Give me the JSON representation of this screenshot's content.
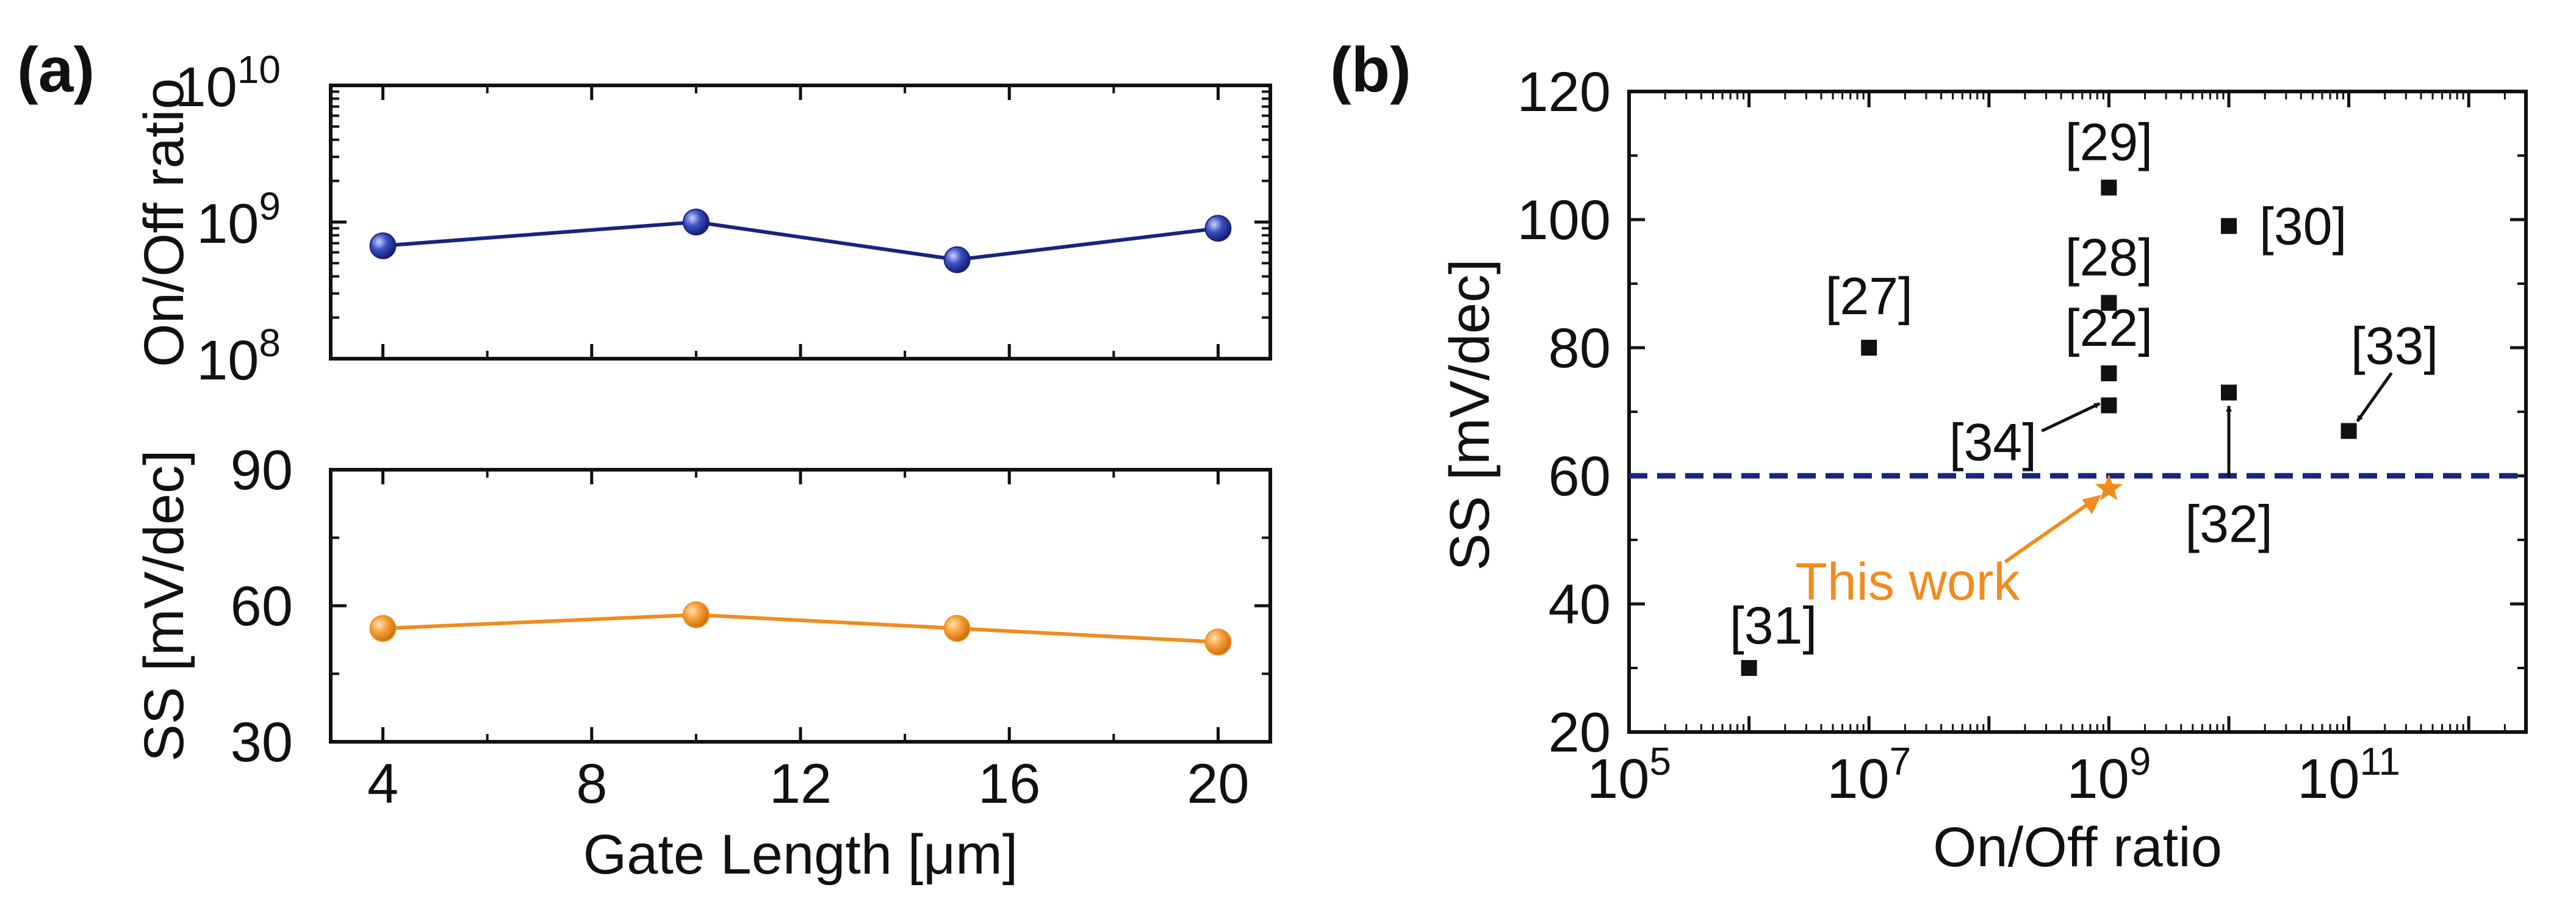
{
  "chart_data": [
    {
      "id": "a-top",
      "panel_label": "(a)",
      "type": "line",
      "xscale": "linear",
      "yscale": "log",
      "xlim": [
        3,
        21
      ],
      "ylim": [
        100000000,
        10000000000
      ],
      "x": [
        4,
        10,
        15,
        20
      ],
      "series": [
        {
          "name": "On/Off ratio",
          "values": [
            670000000,
            1000000000,
            530000000,
            900000000
          ],
          "color": "#1a237e",
          "marker_color": "#2b3ea8"
        }
      ],
      "ylabel": "On/Off ratio",
      "ytick_labels": [
        {
          "base": "10",
          "exp": "10",
          "value": 10000000000
        },
        {
          "base": "10",
          "exp": "9",
          "value": 1000000000
        },
        {
          "base": "10",
          "exp": "8",
          "value": 100000000
        }
      ]
    },
    {
      "id": "a-bottom",
      "type": "line",
      "xscale": "linear",
      "yscale": "linear",
      "xlim": [
        3,
        21
      ],
      "ylim": [
        30,
        90
      ],
      "x": [
        4,
        10,
        15,
        20
      ],
      "series": [
        {
          "name": "SS",
          "values": [
            55,
            58,
            55,
            52
          ],
          "color": "#f08c1e",
          "marker_color": "#f7a03a"
        }
      ],
      "ylabel": "SS [mV/dec]",
      "yticks": [
        "90",
        "60",
        "30"
      ],
      "xticks": [
        "4",
        "8",
        "12",
        "16",
        "20"
      ],
      "xlabel": "Gate Length [μm]"
    },
    {
      "id": "b",
      "panel_label": "(b)",
      "type": "scatter",
      "xscale": "log",
      "yscale": "linear",
      "xlim": [
        100000,
        3000000000000
      ],
      "ylim": [
        20,
        120
      ],
      "xlabel": "On/Off ratio",
      "ylabel": "SS [mV/dec]",
      "yticks": [
        "120",
        "100",
        "80",
        "60",
        "40",
        "20"
      ],
      "xtick_labels": [
        {
          "base": "10",
          "exp": "5",
          "value": 100000
        },
        {
          "base": "10",
          "exp": "7",
          "value": 10000000
        },
        {
          "base": "10",
          "exp": "9",
          "value": 1000000000
        },
        {
          "base": "10",
          "exp": "11",
          "value": 100000000000
        }
      ],
      "points": [
        {
          "label": "[31]",
          "x": 1000000,
          "y": 30
        },
        {
          "label": "[27]",
          "x": 10000000,
          "y": 80
        },
        {
          "label": "[29]",
          "x": 1000000000,
          "y": 105
        },
        {
          "label": "[28]",
          "x": 1000000000,
          "y": 87
        },
        {
          "label": "[22]",
          "x": 1000000000,
          "y": 76
        },
        {
          "label": "[34]",
          "x": 1000000000,
          "y": 71
        },
        {
          "label": "[30]",
          "x": 10000000000,
          "y": 99
        },
        {
          "label": "[32]",
          "x": 10000000000,
          "y": 73
        },
        {
          "label": "[33]",
          "x": 100000000000,
          "y": 67
        }
      ],
      "this_work": {
        "label": "This work",
        "x": 1000000000,
        "y": 58,
        "color": "#f08c1e"
      },
      "reference_line": {
        "y": 60,
        "style": "dashed",
        "color": "#1a237e"
      }
    }
  ]
}
